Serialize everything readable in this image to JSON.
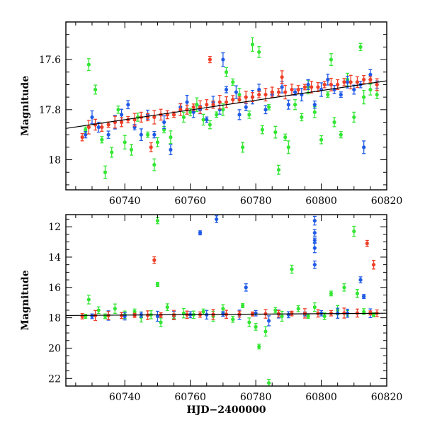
{
  "chart_data": [
    {
      "type": "scatter",
      "title": "",
      "xlabel": "",
      "ylabel": "Magnitude",
      "xlim": [
        60722,
        60820
      ],
      "ylim": [
        18.12,
        17.45
      ],
      "y_inverted": true,
      "x_ticks": [
        60740,
        60760,
        60780,
        60800,
        60820
      ],
      "x_tick_labels": [
        "60740",
        "60760",
        "60780",
        "60800",
        "60820"
      ],
      "y_ticks": [
        17.6,
        17.8,
        18.0
      ],
      "y_tick_labels": [
        "17.6",
        "17.8",
        "18"
      ],
      "grid": false,
      "errorbars": true,
      "trend_line": {
        "x": [
          60722,
          60820
        ],
        "y": [
          17.875,
          17.685
        ],
        "color": "#000000"
      },
      "series": [
        {
          "color": "#33e633",
          "values": [
            [
              60728,
              17.88
            ],
            [
              60729,
              17.62
            ],
            [
              60731,
              17.72
            ],
            [
              60733,
              17.92
            ],
            [
              60734,
              18.05
            ],
            [
              60736,
              17.97
            ],
            [
              60738,
              17.8
            ],
            [
              60740,
              17.93
            ],
            [
              60742,
              17.96
            ],
            [
              60744,
              17.83
            ],
            [
              60747,
              17.9
            ],
            [
              60749,
              18.02
            ],
            [
              60750,
              17.93
            ],
            [
              60752,
              17.88
            ],
            [
              60754,
              17.91
            ],
            [
              60758,
              17.83
            ],
            [
              60760,
              17.81
            ],
            [
              60762,
              17.78
            ],
            [
              60764,
              17.84
            ],
            [
              60766,
              17.86
            ],
            [
              60768,
              17.82
            ],
            [
              60770,
              17.8
            ],
            [
              60771,
              17.65
            ],
            [
              60773,
              17.69
            ],
            [
              60775,
              17.74
            ],
            [
              60776,
              17.95
            ],
            [
              60778,
              17.82
            ],
            [
              60779,
              17.54
            ],
            [
              60781,
              17.57
            ],
            [
              60782,
              17.88
            ],
            [
              60784,
              17.79
            ],
            [
              60786,
              17.89
            ],
            [
              60787,
              18.04
            ],
            [
              60789,
              17.91
            ],
            [
              60790,
              17.95
            ],
            [
              60792,
              17.78
            ],
            [
              60794,
              17.83
            ],
            [
              60796,
              17.71
            ],
            [
              60798,
              17.81
            ],
            [
              60800,
              17.92
            ],
            [
              60802,
              17.74
            ],
            [
              60803,
              17.6
            ],
            [
              60804,
              17.85
            ],
            [
              60806,
              17.9
            ],
            [
              60808,
              17.68
            ],
            [
              60810,
              17.83
            ],
            [
              60812,
              17.55
            ],
            [
              60813,
              17.75
            ],
            [
              60815,
              17.72
            ],
            [
              60817,
              17.74
            ]
          ]
        },
        {
          "color": "#1f5ae6",
          "values": [
            [
              60728,
              17.9
            ],
            [
              60730,
              17.83
            ],
            [
              60732,
              17.87
            ],
            [
              60735,
              17.9
            ],
            [
              60737,
              17.85
            ],
            [
              60739,
              17.82
            ],
            [
              60741,
              17.78
            ],
            [
              60743,
              17.87
            ],
            [
              60745,
              17.9
            ],
            [
              60747,
              17.82
            ],
            [
              60749,
              17.9
            ],
            [
              60752,
              17.85
            ],
            [
              60754,
              17.96
            ],
            [
              60757,
              17.79
            ],
            [
              60759,
              17.77
            ],
            [
              60761,
              17.81
            ],
            [
              60763,
              17.8
            ],
            [
              60765,
              17.84
            ],
            [
              60767,
              17.77
            ],
            [
              60769,
              17.8
            ],
            [
              60771,
              17.72
            ],
            [
              60774,
              17.73
            ],
            [
              60775,
              17.82
            ],
            [
              60777,
              17.79
            ],
            [
              60779,
              17.75
            ],
            [
              60781,
              17.72
            ],
            [
              60783,
              17.8
            ],
            [
              60785,
              17.74
            ],
            [
              60788,
              17.71
            ],
            [
              60790,
              17.78
            ],
            [
              60792,
              17.73
            ],
            [
              60794,
              17.74
            ],
            [
              60796,
              17.7
            ],
            [
              60798,
              17.78
            ],
            [
              60800,
              17.72
            ],
            [
              60802,
              17.68
            ],
            [
              60804,
              17.72
            ],
            [
              60806,
              17.74
            ],
            [
              60808,
              17.69
            ],
            [
              60810,
              17.72
            ],
            [
              60812,
              17.7
            ],
            [
              60813,
              17.95
            ],
            [
              60815,
              17.66
            ],
            [
              60817,
              17.7
            ],
            [
              60770,
              17.6
            ]
          ]
        },
        {
          "color": "#ef3e26",
          "values": [
            [
              60727,
              17.91
            ],
            [
              60729,
              17.87
            ],
            [
              60731,
              17.86
            ],
            [
              60733,
              17.87
            ],
            [
              60735,
              17.86
            ],
            [
              60737,
              17.85
            ],
            [
              60739,
              17.85
            ],
            [
              60741,
              17.84
            ],
            [
              60743,
              17.84
            ],
            [
              60745,
              17.83
            ],
            [
              60747,
              17.83
            ],
            [
              60749,
              17.83
            ],
            [
              60751,
              17.82
            ],
            [
              60753,
              17.82
            ],
            [
              60755,
              17.82
            ],
            [
              60757,
              17.8
            ],
            [
              60759,
              17.8
            ],
            [
              60761,
              17.79
            ],
            [
              60763,
              17.79
            ],
            [
              60765,
              17.78
            ],
            [
              60767,
              17.78
            ],
            [
              60769,
              17.77
            ],
            [
              60771,
              17.77
            ],
            [
              60773,
              17.76
            ],
            [
              60775,
              17.76
            ],
            [
              60777,
              17.75
            ],
            [
              60779,
              17.75
            ],
            [
              60781,
              17.74
            ],
            [
              60783,
              17.74
            ],
            [
              60785,
              17.73
            ],
            [
              60787,
              17.73
            ],
            [
              60789,
              17.73
            ],
            [
              60791,
              17.72
            ],
            [
              60793,
              17.72
            ],
            [
              60795,
              17.71
            ],
            [
              60797,
              17.71
            ],
            [
              60799,
              17.71
            ],
            [
              60801,
              17.7
            ],
            [
              60803,
              17.7
            ],
            [
              60805,
              17.7
            ],
            [
              60807,
              17.69
            ],
            [
              60809,
              17.69
            ],
            [
              60811,
              17.69
            ],
            [
              60813,
              17.68
            ],
            [
              60815,
              17.68
            ],
            [
              60817,
              17.7
            ],
            [
              60748,
              17.95
            ],
            [
              60766,
              17.6
            ],
            [
              60788,
              17.67
            ]
          ]
        }
      ]
    },
    {
      "type": "scatter",
      "title": "",
      "xlabel": "HJD−2400000",
      "ylabel": "Magnitude",
      "xlim": [
        60722,
        60820
      ],
      "ylim": [
        22.5,
        11.2
      ],
      "y_inverted": true,
      "x_ticks": [
        60740,
        60760,
        60780,
        60800,
        60820
      ],
      "x_tick_labels": [
        "60740",
        "60760",
        "60780",
        "60800",
        "60820"
      ],
      "y_ticks": [
        12,
        14,
        16,
        18,
        20,
        22
      ],
      "y_tick_labels": [
        "12",
        "14",
        "16",
        "18",
        "20",
        "22"
      ],
      "grid": false,
      "errorbars": true,
      "trend_line": {
        "x": [
          60722,
          60820
        ],
        "y": [
          17.85,
          17.7
        ],
        "color": "#000000"
      },
      "series": [
        {
          "color": "#33e633",
          "values": [
            [
              60728,
              17.9
            ],
            [
              60729,
              16.8
            ],
            [
              60732,
              17.5
            ],
            [
              60734,
              17.9
            ],
            [
              60737,
              17.4
            ],
            [
              60740,
              17.8
            ],
            [
              60743,
              17.6
            ],
            [
              60745,
              17.95
            ],
            [
              60748,
              17.8
            ],
            [
              60750,
              11.6
            ],
            [
              60750,
              15.8
            ],
            [
              60751,
              18.3
            ],
            [
              60753,
              17.3
            ],
            [
              60755,
              17.9
            ],
            [
              60758,
              17.7
            ],
            [
              60761,
              17.8
            ],
            [
              60764,
              17.6
            ],
            [
              60767,
              17.9
            ],
            [
              60770,
              17.4
            ],
            [
              60773,
              18.1
            ],
            [
              60776,
              17.2
            ],
            [
              60778,
              18.3
            ],
            [
              60780,
              18.6
            ],
            [
              60781,
              19.9
            ],
            [
              60783,
              18.9
            ],
            [
              60784,
              22.3
            ],
            [
              60786,
              17.5
            ],
            [
              60788,
              17.9
            ],
            [
              60791,
              14.8
            ],
            [
              60793,
              17.4
            ],
            [
              60796,
              17.9
            ],
            [
              60798,
              17.3
            ],
            [
              60801,
              17.9
            ],
            [
              60803,
              16.4
            ],
            [
              60805,
              17.5
            ],
            [
              60807,
              16.0
            ],
            [
              60808,
              17.7
            ],
            [
              60810,
              12.3
            ],
            [
              60811,
              16.4
            ],
            [
              60813,
              17.6
            ],
            [
              60816,
              17.8
            ]
          ]
        },
        {
          "color": "#1f5ae6",
          "values": [
            [
              60730,
              17.9
            ],
            [
              60735,
              17.85
            ],
            [
              60740,
              17.9
            ],
            [
              60745,
              17.8
            ],
            [
              60750,
              17.9
            ],
            [
              60755,
              17.85
            ],
            [
              60760,
              17.8
            ],
            [
              60763,
              12.4
            ],
            [
              60765,
              17.8
            ],
            [
              60768,
              11.5
            ],
            [
              60770,
              17.75
            ],
            [
              60775,
              17.8
            ],
            [
              60777,
              16.0
            ],
            [
              60780,
              17.7
            ],
            [
              60784,
              18.2
            ],
            [
              60787,
              17.75
            ],
            [
              60790,
              17.8
            ],
            [
              60795,
              17.75
            ],
            [
              60798,
              11.6
            ],
            [
              60798,
              12.4
            ],
            [
              60798,
              12.9
            ],
            [
              60798,
              13.4
            ],
            [
              60798,
              14.5
            ],
            [
              60800,
              17.7
            ],
            [
              60805,
              17.7
            ],
            [
              60808,
              17.7
            ],
            [
              60812,
              15.5
            ],
            [
              60813,
              16.6
            ],
            [
              60815,
              17.7
            ]
          ]
        },
        {
          "color": "#ef3e26",
          "values": [
            [
              60727,
              17.9
            ],
            [
              60731,
              17.85
            ],
            [
              60735,
              17.85
            ],
            [
              60739,
              17.85
            ],
            [
              60743,
              17.84
            ],
            [
              60747,
              17.83
            ],
            [
              60749,
              14.2
            ],
            [
              60751,
              17.82
            ],
            [
              60755,
              17.82
            ],
            [
              60759,
              17.8
            ],
            [
              60763,
              17.79
            ],
            [
              60767,
              17.78
            ],
            [
              60771,
              17.77
            ],
            [
              60775,
              17.76
            ],
            [
              60779,
              17.75
            ],
            [
              60783,
              17.74
            ],
            [
              60787,
              17.73
            ],
            [
              60791,
              17.72
            ],
            [
              60795,
              17.71
            ],
            [
              60799,
              17.71
            ],
            [
              60803,
              17.7
            ],
            [
              60807,
              17.69
            ],
            [
              60811,
              17.69
            ],
            [
              60814,
              13.1
            ],
            [
              60815,
              17.68
            ],
            [
              60816,
              14.5
            ],
            [
              60817,
              17.7
            ]
          ]
        }
      ]
    }
  ]
}
